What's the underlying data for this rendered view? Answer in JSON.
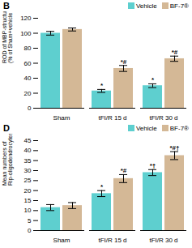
{
  "chart_data": [
    {
      "type": "bar",
      "title": "B",
      "ylabel": "ROD of MBP-structures\n(% of Sham+vehicle group)",
      "categories": [
        "Sham",
        "tFI/R 15 d",
        "tFI/R 30 d"
      ],
      "series": [
        {
          "name": "Vehicle",
          "color": "#5ECFCF",
          "values": [
            100,
            23,
            30
          ],
          "errors": [
            2.5,
            2,
            2.5
          ],
          "annotations": [
            null,
            "*",
            "*"
          ]
        },
        {
          "name": "BF-7®",
          "color": "#D4B896",
          "values": [
            105,
            53,
            66
          ],
          "errors": [
            2,
            4,
            3.5
          ],
          "annotations": [
            null,
            "*#",
            "*#"
          ]
        }
      ],
      "ylim": [
        0,
        120
      ],
      "yticks": [
        0,
        20,
        40,
        60,
        80,
        100,
        120
      ],
      "legend": "upper right"
    },
    {
      "type": "bar",
      "title": "D",
      "ylabel": "Mean numbers of\nRip-oligodendrocytes",
      "categories": [
        "Sham",
        "tFI/R 15 d",
        "tFI/R 30 d"
      ],
      "series": [
        {
          "name": "Vehicle",
          "color": "#5ECFCF",
          "values": [
            11.5,
            18.5,
            29
          ],
          "errors": [
            1.5,
            1.5,
            1.5
          ],
          "annotations": [
            null,
            "*",
            "*†"
          ]
        },
        {
          "name": "BF-7®",
          "color": "#D4B896",
          "values": [
            12.5,
            26,
            37.5
          ],
          "errors": [
            1.5,
            2,
            2
          ],
          "annotations": [
            null,
            "*#",
            "*#†"
          ]
        }
      ],
      "ylim": [
        0,
        45
      ],
      "yticks": [
        0,
        5,
        10,
        15,
        20,
        25,
        30,
        35,
        40,
        45
      ],
      "legend": "upper right"
    }
  ]
}
